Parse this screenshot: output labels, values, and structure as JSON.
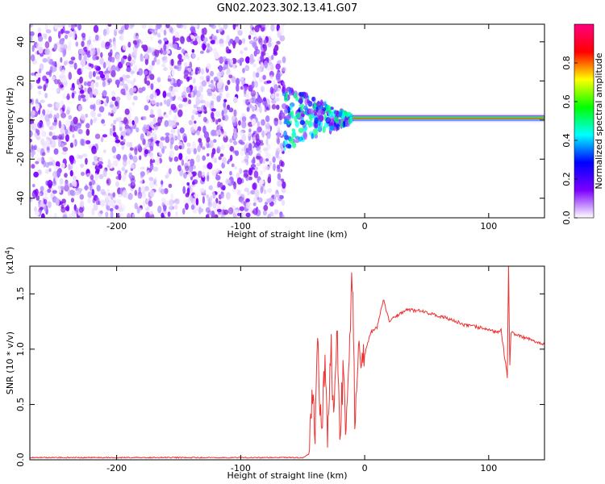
{
  "title": "GN02.2023.302.13.41.G07",
  "chart_data": [
    {
      "type": "heatmap",
      "title": "GN02.2023.302.13.41.G07",
      "xlabel": "Height of straight line (km)",
      "ylabel": "Frequency (Hz)",
      "xlim": [
        -270,
        145
      ],
      "ylim": [
        -50,
        49
      ],
      "xticks": [
        -200,
        -100,
        0,
        100
      ],
      "yticks": [
        -40,
        -20,
        0,
        20,
        40
      ],
      "grid": false,
      "description_points": {
        "noise_region_x": [
          -270,
          -65
        ],
        "transition_x": [
          -65,
          -10
        ],
        "signal_frequency_hz": 1,
        "signal_region_x": [
          -10,
          145
        ]
      },
      "colorbar": {
        "label": "Normalized spectral amplitude",
        "range": [
          0,
          1
        ],
        "ticks": [
          0.0,
          0.2,
          0.4,
          0.6,
          0.8
        ],
        "colors": [
          "#ffffff",
          "#7b00ff",
          "#0000ff",
          "#00ffff",
          "#00ff00",
          "#ffff00",
          "#ff0000",
          "#ff0080"
        ]
      }
    },
    {
      "type": "line",
      "xlabel": "Height of straight line (km)",
      "ylabel": "SNR (10 * v/v)",
      "multiplier_label": "(x10",
      "multiplier_exp": "4",
      "multiplier_close": ")",
      "xlim": [
        -270,
        145
      ],
      "ylim": [
        0,
        1.75
      ],
      "xticks": [
        -200,
        -100,
        0,
        100
      ],
      "yticks": [
        0.0,
        0.5,
        1.0,
        1.5
      ],
      "ytick_labels": [
        "0.0",
        "0.5",
        "1.0",
        "1.5"
      ],
      "grid": false,
      "line_color": "#ee3333",
      "series": [
        {
          "x": [
            -270,
            -200,
            -100,
            -50,
            -45,
            -42,
            -40,
            -38,
            -35,
            -32,
            -30,
            -27,
            -25,
            -22,
            -20,
            -17,
            -15,
            -12,
            -10,
            -8,
            -5,
            0,
            5,
            10,
            15,
            20,
            25,
            30,
            35,
            40,
            45,
            50,
            60,
            70,
            80,
            90,
            100,
            105,
            110,
            115,
            116,
            117,
            118,
            120,
            125,
            130,
            135,
            140,
            145
          ],
          "y": [
            0.02,
            0.02,
            0.02,
            0.02,
            0.05,
            0.6,
            0.3,
            1.1,
            0.2,
            0.9,
            0.1,
            1.0,
            0.3,
            1.15,
            0.25,
            0.85,
            0.2,
            1.2,
            1.7,
            0.4,
            0.95,
            0.95,
            1.15,
            1.2,
            1.45,
            1.25,
            1.3,
            1.33,
            1.36,
            1.35,
            1.35,
            1.33,
            1.3,
            1.27,
            1.22,
            1.2,
            1.18,
            1.15,
            1.17,
            0.75,
            1.75,
            0.85,
            1.15,
            1.14,
            1.12,
            1.1,
            1.08,
            1.06,
            1.04
          ]
        }
      ]
    }
  ]
}
